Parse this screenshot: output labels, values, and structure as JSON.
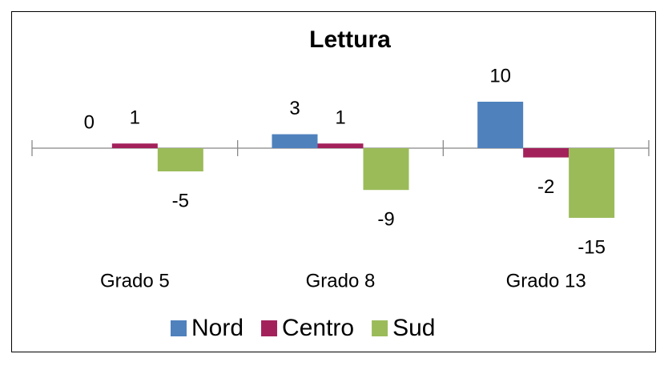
{
  "chart_data": {
    "type": "bar",
    "title": "Lettura",
    "categories": [
      "Grado 5",
      "Grado 8",
      "Grado 13"
    ],
    "series": [
      {
        "name": "Nord",
        "color": "#4f81bd",
        "values": [
          0,
          3,
          10
        ]
      },
      {
        "name": "Centro",
        "color": "#a3215b",
        "values": [
          1,
          1,
          -2
        ]
      },
      {
        "name": "Sud",
        "color": "#9bbb59",
        "values": [
          -5,
          -9,
          -15
        ]
      }
    ],
    "legend": "bottom"
  }
}
